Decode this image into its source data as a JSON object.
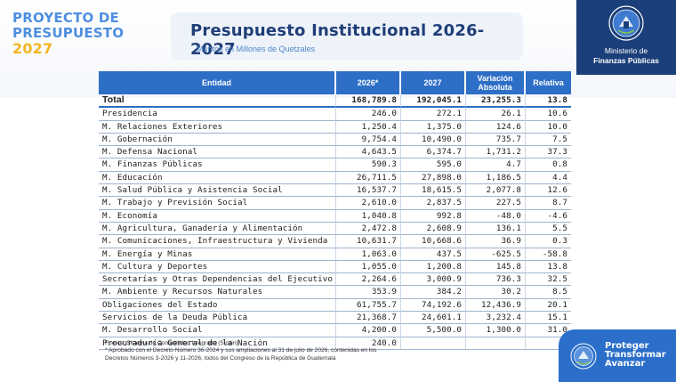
{
  "brand": {
    "line1": "PROYECTO DE",
    "line2": "PRESUPUESTO",
    "line3": "2027"
  },
  "header": {
    "title": "Presupuesto Institucional 2026-2027",
    "subtitle": "Montos en Millones de Quetzales"
  },
  "ministry": {
    "line1": "Ministerio de",
    "line2": "Finanzas Públicas",
    "emblem": "guatemala-coat-of-arms-icon"
  },
  "table": {
    "headers": {
      "entidad": "Entidad",
      "y2026": "2026*",
      "y2027": "2027",
      "var_abs_1": "Variación",
      "var_abs_2": "Absoluta",
      "relativa": "Relativa"
    },
    "total": {
      "name": "Total",
      "y2026": "168,789.8",
      "y2027": "192,045.1",
      "abs": "23,255.3",
      "rel": "13.8"
    },
    "rows": [
      {
        "name": "Presidencia",
        "y2026": "246.0",
        "y2027": "272.1",
        "abs": "26.1",
        "rel": "10.6"
      },
      {
        "name": "M. Relaciones Exteriores",
        "y2026": "1,250.4",
        "y2027": "1,375.0",
        "abs": "124.6",
        "rel": "10.0"
      },
      {
        "name": "M. Gobernación",
        "y2026": "9,754.4",
        "y2027": "10,490.0",
        "abs": "735.7",
        "rel": "7.5"
      },
      {
        "name": "M. Defensa Nacional",
        "y2026": "4,643.5",
        "y2027": "6,374.7",
        "abs": "1,731.2",
        "rel": "37.3"
      },
      {
        "name": "M. Finanzas Públicas",
        "y2026": "590.3",
        "y2027": "595.0",
        "abs": "4.7",
        "rel": "0.8"
      },
      {
        "name": "M. Educación",
        "y2026": "26,711.5",
        "y2027": "27,898.0",
        "abs": "1,186.5",
        "rel": "4.4"
      },
      {
        "name": "M. Salud Pública y Asistencia Social",
        "y2026": "16,537.7",
        "y2027": "18,615.5",
        "abs": "2,077.8",
        "rel": "12.6"
      },
      {
        "name": "M. Trabajo y Previsión Social",
        "y2026": "2,610.0",
        "y2027": "2,837.5",
        "abs": "227.5",
        "rel": "8.7"
      },
      {
        "name": "M. Economía",
        "y2026": "1,040.8",
        "y2027": "992.8",
        "abs": "-48.0",
        "rel": "-4.6"
      },
      {
        "name": "M. Agricultura, Ganadería y Alimentación",
        "y2026": "2,472.8",
        "y2027": "2,608.9",
        "abs": "136.1",
        "rel": "5.5"
      },
      {
        "name": "M. Comunicaciones, Infraestructura y Vivienda",
        "y2026": "10,631.7",
        "y2027": "10,668.6",
        "abs": "36.9",
        "rel": "0.3"
      },
      {
        "name": "M. Energía y Minas",
        "y2026": "1,063.0",
        "y2027": "437.5",
        "abs": "-625.5",
        "rel": "-58.8"
      },
      {
        "name": "M. Cultura y Deportes",
        "y2026": "1,055.0",
        "y2027": "1,200.8",
        "abs": "145.8",
        "rel": "13.8"
      },
      {
        "name": "Secretarías y Otras Dependencias del Ejecutivo",
        "y2026": "2,264.6",
        "y2027": "3,000.9",
        "abs": "736.3",
        "rel": "32.5"
      },
      {
        "name": "M. Ambiente y Recursos Naturales",
        "y2026": "353.9",
        "y2027": "384.2",
        "abs": "30.2",
        "rel": "8.5"
      },
      {
        "name": "Obligaciones del Estado",
        "y2026": "61,755.7",
        "y2027": "74,192.6",
        "abs": "12,436.9",
        "rel": "20.1"
      },
      {
        "name": "Servicios de la Deuda Pública",
        "y2026": "21,368.7",
        "y2027": "24,601.1",
        "abs": "3,232.4",
        "rel": "15.1"
      },
      {
        "name": "M. Desarrollo Social",
        "y2026": "4,200.0",
        "y2027": "5,500.0",
        "abs": "1,300.0",
        "rel": "31.0"
      },
      {
        "name": "Procuraduría General de la Nación",
        "y2026": "240.0",
        "y2027": "",
        "abs": "",
        "rel": ""
      }
    ]
  },
  "footnotes": {
    "source": "Fuente: Sistema de Contabilidad Integrada (Sicoin).",
    "note_line1": "* Aprobado con el Decreto Número 36-2024 y sus ampliaciones al 31 de julio de 2026, contenidas en los",
    "note_line2": "Decretos Números 3-2026 y 11-2026, todos del Congreso de la República de Guatemala"
  },
  "badge": {
    "line1": "Proteger",
    "line2": "Transformar",
    "line3": "Avanzar",
    "emblem": "guatemala-coat-of-arms-icon"
  },
  "colors": {
    "header_blue": "#2d6ec7",
    "title_navy": "#1f3e78",
    "ministry_navy": "#1b3f7a",
    "brand_blue": "#4d8fe0",
    "brand_yellow": "#f3b623"
  }
}
